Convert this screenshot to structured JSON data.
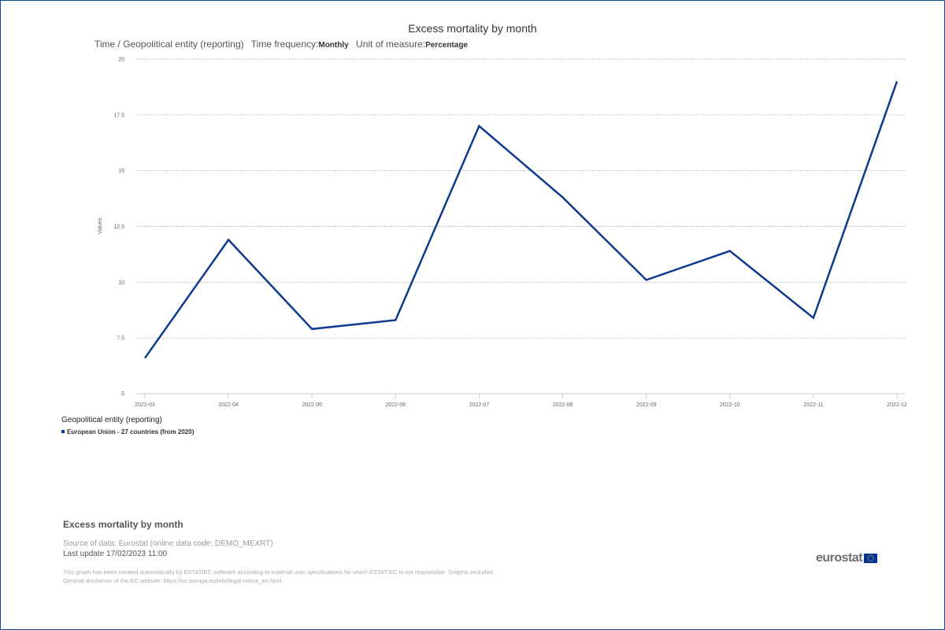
{
  "header": {
    "title": "Excess mortality by month",
    "subtitle": {
      "dimension": "Time / Geopolitical entity (reporting)",
      "freq_label": "Time frequency:",
      "freq_value": "Monthly",
      "unit_label": "Unit of measure:",
      "unit_value": "Percentage"
    }
  },
  "chart_data": {
    "type": "line",
    "title": "Excess mortality by month",
    "ylabel": "Values",
    "xlabel": "",
    "x": [
      "2022-03",
      "2022-04",
      "2022-05",
      "2022-06",
      "2022-07",
      "2022-08",
      "2022-09",
      "2022-10",
      "2022-11",
      "2022-12"
    ],
    "series": [
      {
        "name": "European Union - 27 countries (from 2020)",
        "values": [
          6.6,
          11.9,
          7.9,
          8.3,
          17.0,
          13.8,
          10.1,
          11.4,
          8.4,
          19.0
        ],
        "color": "#0e3a8e"
      }
    ],
    "ylim": [
      5,
      20
    ],
    "yticks": [
      "5",
      "7.5",
      "10",
      "12.5",
      "15",
      "17.5",
      "20"
    ],
    "grid": true,
    "legend_title": "Geopolitical entity (reporting)",
    "legend_position": "bottom-left"
  },
  "footer": {
    "title": "Excess mortality by month",
    "source": "Source of data: Eurostat (online data code: DEMO_MEXRT)",
    "last_update": "Last update 17/02/2023 11:00",
    "disclaimer_1": "This graph has been created automatically by ESTAT/EC software according to external user specifications for which ESTAT/EC is not responsible. Graphic included.",
    "disclaimer_2": "General disclaimer of the EC website: https://ec.europa.eu/info/legal-notice_en.html",
    "logo_text": "eurostat"
  }
}
